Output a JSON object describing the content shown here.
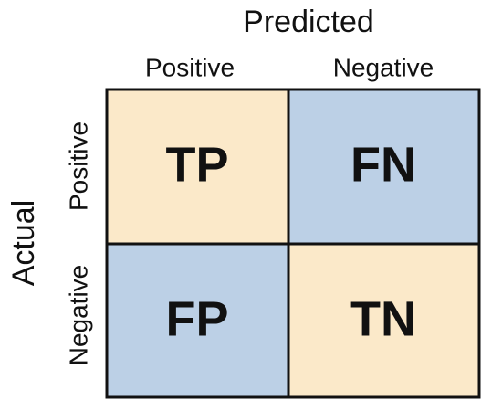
{
  "column_header": {
    "title": "Predicted",
    "labels": [
      "Positive",
      "Negative"
    ]
  },
  "row_header": {
    "title": "Actual",
    "labels": [
      "Positive",
      "Negative"
    ]
  },
  "cells": [
    [
      "TP",
      "FN"
    ],
    [
      "FP",
      "TN"
    ]
  ]
}
